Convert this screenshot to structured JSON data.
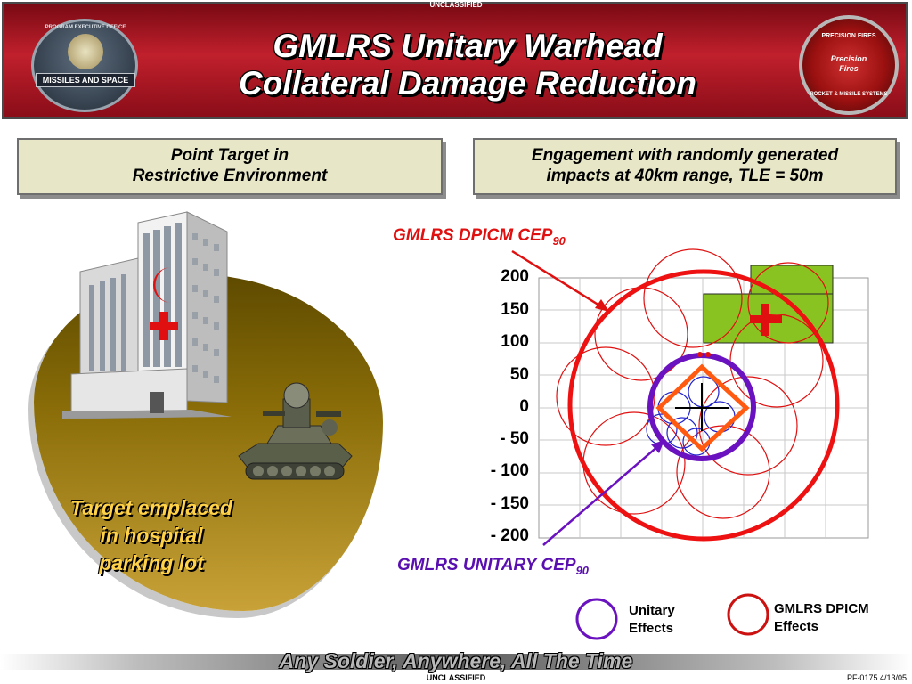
{
  "classification": {
    "top": "UNCLASSIFIED",
    "bottom": "UNCLASSIFIED"
  },
  "banner": {
    "title_line1": "GMLRS Unitary Warhead",
    "title_line2": "Collateral Damage Reduction",
    "logo_left": {
      "ring_text": "PROGRAM EXECUTIVE OFFICE",
      "ribbon_text": "MISSILES AND SPACE",
      "icon": "peo-seal-icon"
    },
    "logo_right": {
      "top_text": "PRECISION FIRES",
      "mid_line1": "Precision",
      "mid_line2": "Fires",
      "bottom_text": "ROCKET & MISSILE SYSTEMS",
      "icon": "precision-fires-seal-icon"
    }
  },
  "headers": {
    "left_line1": "Point Target in",
    "left_line2": "Restrictive Environment",
    "right_line1": "Engagement with randomly generated",
    "right_line2": "impacts at 40km range, TLE = 50m"
  },
  "illustration": {
    "caption_line1": "Target emplaced",
    "caption_line2": "in hospital",
    "caption_line3": "parking lot",
    "icons": [
      "hospital-building-icon",
      "crescent-icon",
      "red-cross-icon",
      "tank-icon"
    ]
  },
  "plot": {
    "dpicm_label": "GMLRS DPICM CEP",
    "dpicm_sub": "90",
    "unitary_label": "GMLRS UNITARY CEP",
    "unitary_sub": "90",
    "y_ticks": [
      "200",
      "150",
      "100",
      "50",
      "0",
      "- 50",
      "- 100",
      "- 150",
      "- 200"
    ],
    "colors": {
      "dpicm": "#e01010",
      "unitary": "#6a11c0",
      "building": "#88c322",
      "target": "#ff5a10"
    }
  },
  "legend": {
    "unitary_line1": "Unitary",
    "unitary_line2": "Effects",
    "dpicm_line1": "GMLRS DPICM",
    "dpicm_line2": "Effects"
  },
  "footer": {
    "slogan": "Any Soldier, Anywhere, All The Time",
    "id": "PF-0175  4/13/05"
  }
}
